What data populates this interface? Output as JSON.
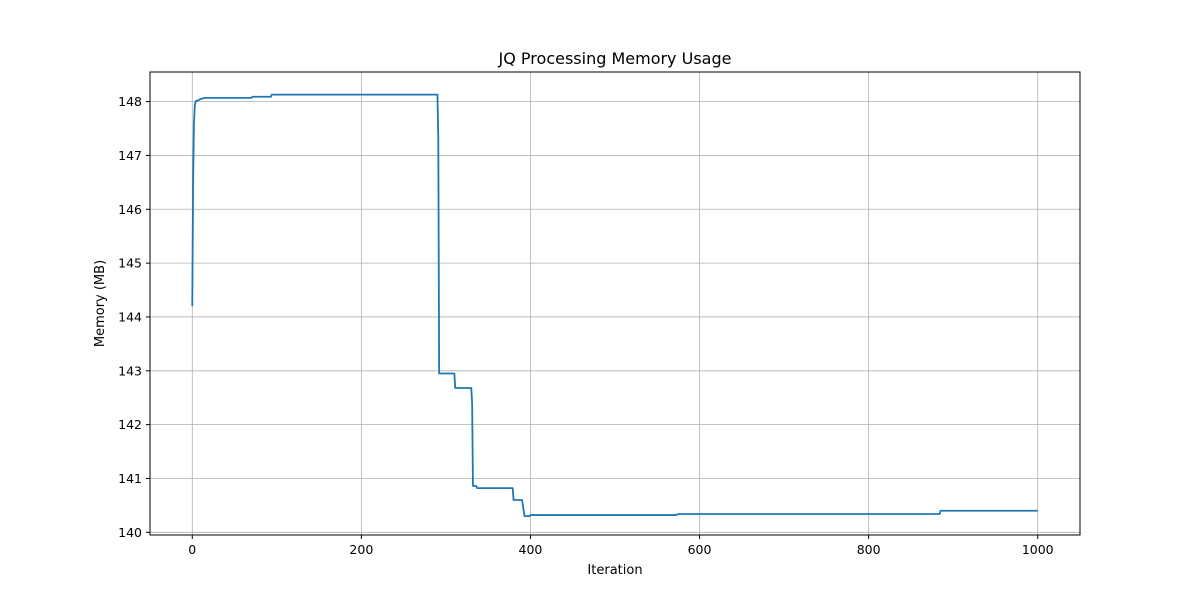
{
  "chart_data": {
    "type": "line",
    "title": "JQ Processing Memory Usage",
    "xlabel": "Iteration",
    "ylabel": "Memory (MB)",
    "xlim": [
      -50,
      1050
    ],
    "ylim": [
      139.95,
      148.55
    ],
    "xticks": [
      0,
      200,
      400,
      600,
      800,
      1000
    ],
    "yticks": [
      140,
      141,
      142,
      143,
      144,
      145,
      146,
      147,
      148
    ],
    "grid": true,
    "line_color": "#1f77b4",
    "grid_color": "#b0b0b0",
    "series": [
      {
        "x": [
          0,
          1,
          2,
          3,
          4,
          5,
          7,
          10,
          15,
          70,
          71,
          93,
          94,
          290,
          291,
          292,
          293,
          310,
          311,
          330,
          331,
          332,
          333,
          336,
          337,
          379,
          380,
          389,
          390,
          393,
          398,
          399,
          400,
          572,
          575,
          884,
          885,
          1000
        ],
        "y": [
          144.2,
          146.5,
          147.6,
          147.93,
          148.0,
          148.02,
          148.02,
          148.05,
          148.07,
          148.07,
          148.09,
          148.09,
          148.13,
          148.13,
          147.3,
          142.95,
          142.95,
          142.95,
          142.68,
          142.68,
          142.4,
          140.86,
          140.86,
          140.86,
          140.82,
          140.82,
          140.6,
          140.6,
          140.6,
          140.3,
          140.3,
          140.3,
          140.32,
          140.32,
          140.34,
          140.34,
          140.4,
          140.4
        ]
      }
    ]
  }
}
